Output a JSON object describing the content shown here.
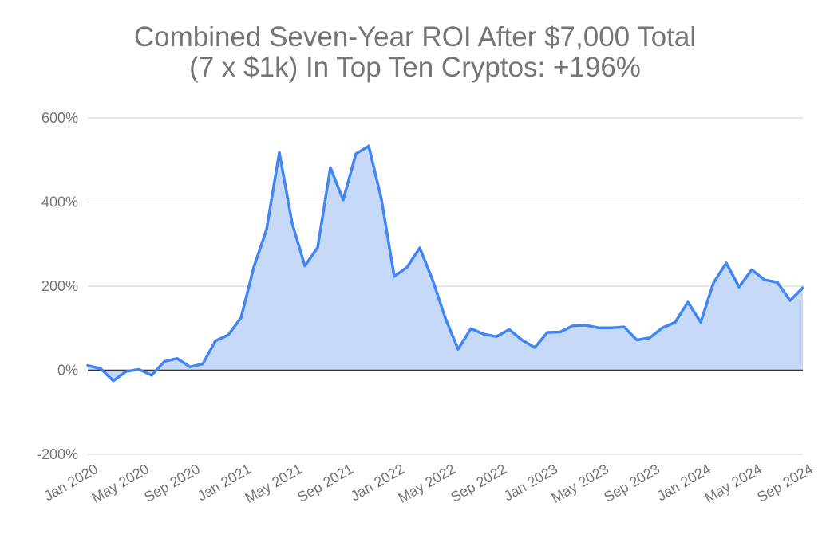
{
  "chart_data": {
    "type": "area",
    "title_line1": "Combined Seven-Year ROI After $7,000 Total",
    "title_line2": "(7 x $1k) In Top Ten Cryptos: +196%",
    "xlabel": "",
    "ylabel": "",
    "ylim": [
      -200,
      600
    ],
    "y_ticks": [
      -200,
      0,
      200,
      400,
      600
    ],
    "y_tick_labels": [
      "-200%",
      "0%",
      "200%",
      "400%",
      "600%"
    ],
    "x_tick_labels": [
      "Jan 2020",
      "May 2020",
      "Sep 2020",
      "Jan 2021",
      "May 2021",
      "Sep 2021",
      "Jan 2022",
      "May 2022",
      "Sep 2022",
      "Jan 2023",
      "May 2023",
      "Sep 2023",
      "Jan 2024",
      "May 2024",
      "Sep 2024"
    ],
    "x": [
      "Jan 2020",
      "Feb 2020",
      "Mar 2020",
      "Apr 2020",
      "May 2020",
      "Jun 2020",
      "Jul 2020",
      "Aug 2020",
      "Sep 2020",
      "Oct 2020",
      "Nov 2020",
      "Dec 2020",
      "Jan 2021",
      "Feb 2021",
      "Mar 2021",
      "Apr 2021",
      "May 2021",
      "Jun 2021",
      "Jul 2021",
      "Aug 2021",
      "Sep 2021",
      "Oct 2021",
      "Nov 2021",
      "Dec 2021",
      "Jan 2022",
      "Feb 2022",
      "Mar 2022",
      "Apr 2022",
      "May 2022",
      "Jun 2022",
      "Jul 2022",
      "Aug 2022",
      "Sep 2022",
      "Oct 2022",
      "Nov 2022",
      "Dec 2022",
      "Jan 2023",
      "Feb 2023",
      "Mar 2023",
      "Apr 2023",
      "May 2023",
      "Jun 2023",
      "Jul 2023",
      "Aug 2023",
      "Sep 2023",
      "Oct 2023",
      "Nov 2023",
      "Dec 2023",
      "Jan 2024",
      "Feb 2024",
      "Mar 2024",
      "Apr 2024",
      "May 2024",
      "Jun 2024",
      "Jul 2024",
      "Aug 2024",
      "Sep 2024"
    ],
    "series": [
      {
        "values": [
          11,
          4,
          -25,
          -3,
          2,
          -12,
          21,
          28,
          8,
          15,
          70,
          84,
          125,
          245,
          335,
          518,
          350,
          248,
          292,
          482,
          405,
          515,
          533,
          406,
          223,
          245,
          291,
          215,
          124,
          50,
          99,
          86,
          80,
          97,
          72,
          54,
          90,
          91,
          106,
          107,
          101,
          101,
          103,
          72,
          77,
          101,
          114,
          162,
          114,
          208,
          255,
          198,
          239,
          215,
          209,
          166,
          196
        ]
      }
    ],
    "colors": {
      "line": "#4285f4",
      "area": "#c6d9f8",
      "grid": "#cccccc",
      "zero_line": "#333333"
    },
    "grid": true,
    "legend": "none"
  }
}
